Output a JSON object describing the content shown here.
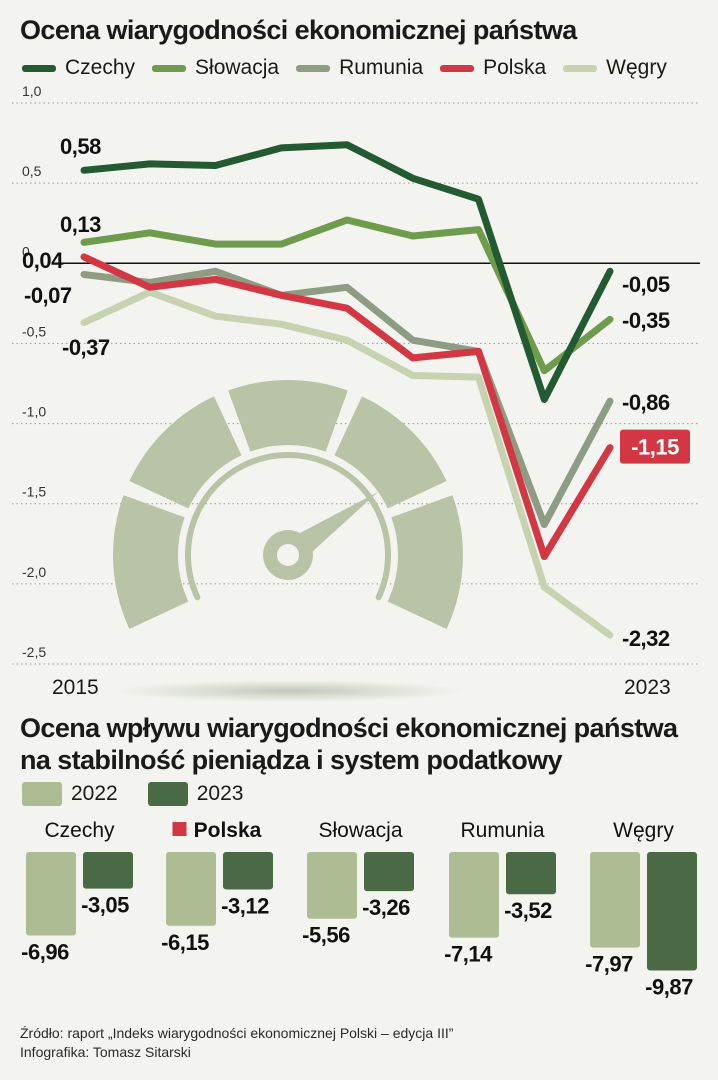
{
  "colors": {
    "czechy": "#245a31",
    "slowacja": "#6e9b4c",
    "rumunia": "#8e9c84",
    "polska": "#d33744",
    "wegry": "#c7d3b0",
    "bar2022": "#aebc94",
    "bar2023": "#4a6a45",
    "gauge": "#b9c4a7"
  },
  "chart_data": [
    {
      "type": "line",
      "title": "Ocena wiarygodności ekonomicznej państwa",
      "x_start_label": "2015",
      "x_end_label": "2023",
      "ylim": [
        -2.5,
        1.0
      ],
      "yticks": [
        "1,0",
        "0,5",
        "0",
        "-0,5",
        "-1,0",
        "-1,5",
        "-2,0",
        "-2,5"
      ],
      "grid": "dotted",
      "series": [
        {
          "name": "Czechy",
          "key": "czechy",
          "values": [
            0.58,
            0.62,
            0.61,
            0.72,
            0.74,
            0.53,
            0.4,
            -0.85,
            -0.05
          ],
          "start_label": "0,58",
          "end_label": "-0,05"
        },
        {
          "name": "Słowacja",
          "key": "slowacja",
          "values": [
            0.13,
            0.19,
            0.12,
            0.12,
            0.27,
            0.17,
            0.21,
            -0.67,
            -0.35
          ],
          "start_label": "0,13",
          "end_label": "-0,35"
        },
        {
          "name": "Rumunia",
          "key": "rumunia",
          "values": [
            -0.07,
            -0.12,
            -0.05,
            -0.2,
            -0.15,
            -0.48,
            -0.55,
            -1.63,
            -0.86
          ],
          "start_label": "-0,07",
          "end_label": "-0,86"
        },
        {
          "name": "Polska",
          "key": "polska",
          "values": [
            0.04,
            -0.15,
            -0.1,
            -0.2,
            -0.28,
            -0.59,
            -0.55,
            -1.83,
            -1.15
          ],
          "start_label": "0,04",
          "end_label": "-1,15"
        },
        {
          "name": "Węgry",
          "key": "wegry",
          "values": [
            -0.37,
            -0.18,
            -0.33,
            -0.38,
            -0.48,
            -0.7,
            -0.71,
            -2.02,
            -2.32
          ],
          "start_label": "-0,37",
          "end_label": "-2,32"
        }
      ]
    },
    {
      "type": "bar",
      "title": "Ocena wpływu wiarygodności ekonomicznej państwa na stabilność pieniądza i system podatkowy",
      "series": [
        {
          "name": "2022"
        },
        {
          "name": "2023"
        }
      ],
      "groups": [
        {
          "name": "Czechy",
          "v2022": -6.96,
          "v2023": -3.05,
          "l2022": "-6,96",
          "l2023": "-3,05",
          "highlight": false
        },
        {
          "name": "Polska",
          "v2022": -6.15,
          "v2023": -3.12,
          "l2022": "-6,15",
          "l2023": "-3,12",
          "highlight": true
        },
        {
          "name": "Słowacja",
          "v2022": -5.56,
          "v2023": -3.26,
          "l2022": "-5,56",
          "l2023": "-3,26",
          "highlight": false
        },
        {
          "name": "Rumunia",
          "v2022": -7.14,
          "v2023": -3.52,
          "l2022": "-7,14",
          "l2023": "-3,52",
          "highlight": false
        },
        {
          "name": "Węgry",
          "v2022": -7.97,
          "v2023": -9.87,
          "l2022": "-7,97",
          "l2023": "-9,87",
          "highlight": false
        }
      ]
    }
  ],
  "legend1": [
    "Czechy",
    "Słowacja",
    "Rumunia",
    "Polska",
    "Węgry"
  ],
  "legend2": [
    "2022",
    "2023"
  ],
  "source": {
    "line1": "Źródło: raport „Indeks wiarygodności ekonomicznej Polski – edycja III”",
    "line2": "Infografika: Tomasz Sitarski"
  }
}
